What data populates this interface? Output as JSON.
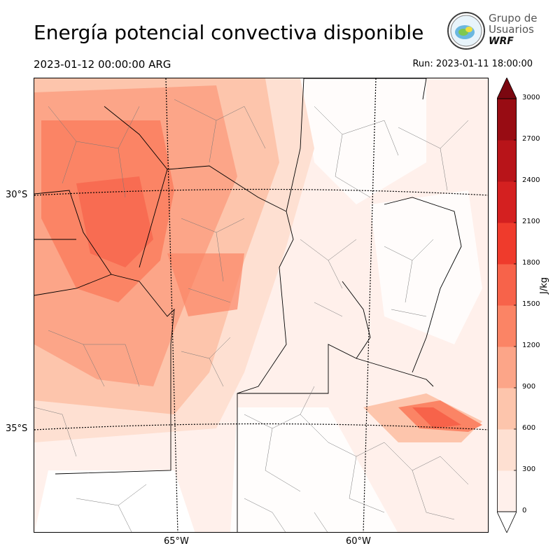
{
  "title": "Energía potencial convectiva disponible",
  "valid_time": "2023-01-12 00:00:00 ARG",
  "run_time": "Run: 2023-01-11 18:00:00",
  "logo": {
    "line1": "Grupo de",
    "line2": "Usuarios",
    "line3": "WRF",
    "icon": "globe-logo-icon"
  },
  "map": {
    "lat_labels": [
      "30°S",
      "35°S"
    ],
    "lon_labels": [
      "65°W",
      "60°W"
    ]
  },
  "colorbar": {
    "unit": "J/kg",
    "ticks": [
      "0",
      "300",
      "600",
      "900",
      "1200",
      "1500",
      "1800",
      "2100",
      "2400",
      "2700",
      "3000"
    ],
    "colors": [
      "#fff0eb",
      "#fee0d2",
      "#fdc5ac",
      "#fca588",
      "#fb8465",
      "#f7634a",
      "#ef3b2c",
      "#d42020",
      "#b81419",
      "#980c13",
      "#7b0710"
    ]
  }
}
